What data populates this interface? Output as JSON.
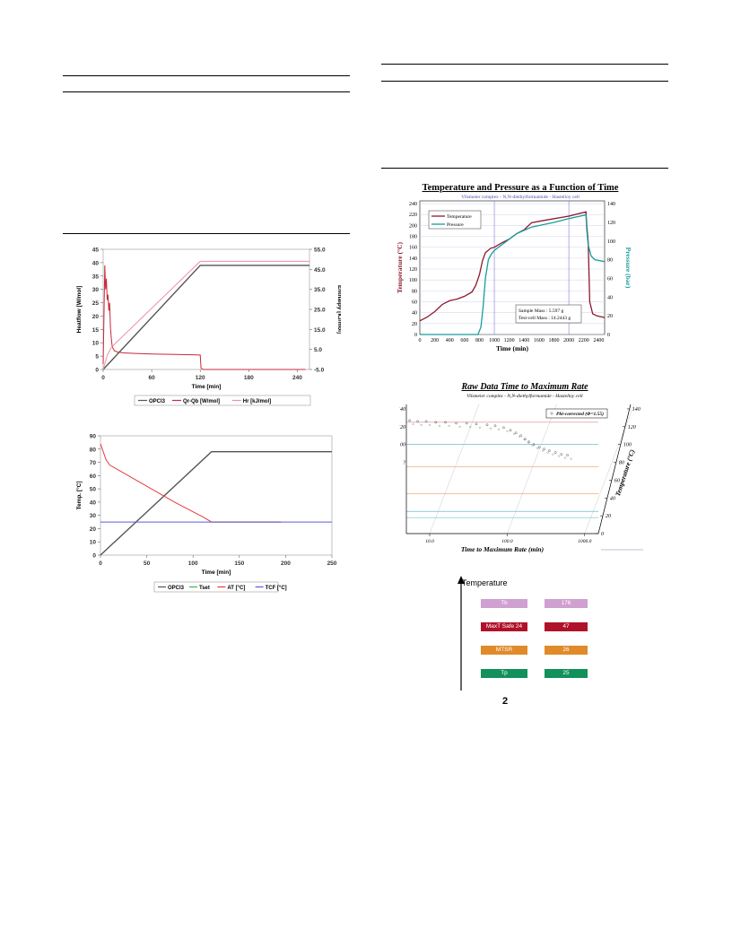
{
  "page_number": "2",
  "chart_data": [
    {
      "type": "line",
      "id": "heatflow_chart",
      "xlabel": "Time [min]",
      "ylabel": "Heatflow [W/mol]",
      "y2label": "Enthalpy [kJ/mol]",
      "x_ticks": [
        "0",
        "60",
        "120",
        "180",
        "240"
      ],
      "y_ticks": [
        "0",
        "5",
        "10",
        "15",
        "20",
        "25",
        "30",
        "35",
        "40",
        "45"
      ],
      "y2_ticks": [
        "55.0",
        "45.0",
        "35.0",
        "25.0",
        "15.0",
        "5.0",
        "-5.0"
      ],
      "xlim": [
        0,
        255
      ],
      "ylim": [
        0,
        45
      ],
      "y2lim": [
        -5,
        55
      ],
      "legend_position": "bottom",
      "series": [
        {
          "name": "OPCl3",
          "color": "#555555",
          "points": [
            [
              0,
              0
            ],
            [
              120,
              39
            ],
            [
              255,
              39
            ]
          ]
        },
        {
          "name": "Qr-Qb [W/mol]",
          "color": "#c8283c",
          "points": [
            [
              0,
              2
            ],
            [
              1,
              20
            ],
            [
              2,
              39
            ],
            [
              3,
              30
            ],
            [
              4,
              34
            ],
            [
              5,
              26
            ],
            [
              6,
              28
            ],
            [
              7,
              22
            ],
            [
              8,
              25
            ],
            [
              9,
              16
            ],
            [
              10,
              12
            ],
            [
              11,
              9
            ],
            [
              12,
              8
            ],
            [
              14,
              7
            ],
            [
              18,
              6.5
            ],
            [
              25,
              6.2
            ],
            [
              40,
              6
            ],
            [
              60,
              5.8
            ],
            [
              90,
              5.6
            ],
            [
              110,
              5.5
            ],
            [
              120,
              5.4
            ],
            [
              121,
              0.5
            ],
            [
              124,
              0
            ],
            [
              250,
              0
            ]
          ]
        },
        {
          "name": "Hr [kJ/mol]",
          "color": "#f08ca8",
          "points": [
            [
              0,
              -5
            ],
            [
              5,
              2
            ],
            [
              10,
              6
            ],
            [
              120,
              49
            ],
            [
              255,
              49
            ]
          ]
        }
      ]
    },
    {
      "type": "line",
      "id": "temp_chart",
      "xlabel": "Time [min]",
      "ylabel": "Temp. [°C]",
      "x_ticks": [
        "0",
        "50",
        "100",
        "150",
        "200",
        "250"
      ],
      "y_ticks": [
        "0",
        "10",
        "20",
        "30",
        "40",
        "50",
        "60",
        "70",
        "80",
        "90"
      ],
      "xlim": [
        0,
        250
      ],
      "ylim": [
        0,
        90
      ],
      "legend_position": "bottom",
      "series": [
        {
          "name": "OPCl3",
          "color": "#555555",
          "points": [
            [
              0,
              0
            ],
            [
              120,
              78
            ],
            [
              250,
              78
            ]
          ]
        },
        {
          "name": "Tset",
          "color": "#3cb44b",
          "points": [
            [
              120,
              25
            ],
            [
              195,
              25
            ]
          ]
        },
        {
          "name": "AT [°C]",
          "color": "#e63c3c",
          "points": [
            [
              0,
              84
            ],
            [
              3,
              78
            ],
            [
              6,
              72
            ],
            [
              10,
              68
            ],
            [
              20,
              64
            ],
            [
              50,
              52
            ],
            [
              80,
              40
            ],
            [
              110,
              29
            ],
            [
              120,
              25
            ],
            [
              195,
              25
            ]
          ]
        },
        {
          "name": "TCF [°C]",
          "color": "#5a5adc",
          "points": [
            [
              0,
              25
            ],
            [
              250,
              25
            ]
          ]
        }
      ]
    },
    {
      "type": "line",
      "id": "tp_chart",
      "title": "Temperature and Pressure as a Function of Time",
      "subtitle": "Vilsmeier complex - N,N-diethylformamide - Hastelloy cell",
      "xlabel": "Time (min)",
      "ylabel": "Temperature (°C)",
      "y2label": "Pressure (bar)",
      "x_ticks": [
        "0",
        "200",
        "400",
        "600",
        "800",
        "1000",
        "1200",
        "1400",
        "1600",
        "1800",
        "2000",
        "2200",
        "2400"
      ],
      "y_ticks": [
        "0",
        "20",
        "40",
        "60",
        "80",
        "100",
        "120",
        "140",
        "160",
        "180",
        "200",
        "220",
        "240"
      ],
      "y2_ticks": [
        "0",
        "20",
        "40",
        "60",
        "80",
        "100",
        "120",
        "140"
      ],
      "xlim": [
        0,
        2480
      ],
      "ylim": [
        0,
        245
      ],
      "y2lim": [
        0,
        143
      ],
      "legend_position": "top-left",
      "annotation": [
        "Sample Mass : 5.597 g",
        "Test-cell Mass : 14.2443 g"
      ],
      "series": [
        {
          "name": "Temperature",
          "color": "#8b1a2b",
          "points": [
            [
              0,
              25
            ],
            [
              100,
              32
            ],
            [
              200,
              42
            ],
            [
              300,
              55
            ],
            [
              400,
              62
            ],
            [
              500,
              65
            ],
            [
              600,
              70
            ],
            [
              700,
              78
            ],
            [
              750,
              90
            ],
            [
              800,
              110
            ],
            [
              840,
              135
            ],
            [
              880,
              150
            ],
            [
              950,
              158
            ],
            [
              1000,
              160
            ],
            [
              1100,
              168
            ],
            [
              1200,
              175
            ],
            [
              1300,
              185
            ],
            [
              1400,
              192
            ],
            [
              1500,
              205
            ],
            [
              1700,
              210
            ],
            [
              2000,
              217
            ],
            [
              2230,
              225
            ],
            [
              2240,
              200
            ],
            [
              2260,
              170
            ],
            [
              2280,
              60
            ],
            [
              2320,
              38
            ],
            [
              2380,
              34
            ],
            [
              2480,
              31
            ]
          ]
        },
        {
          "name": "Pressure",
          "color": "#1a9c9c",
          "points": [
            [
              0,
              0
            ],
            [
              780,
              0
            ],
            [
              820,
              8
            ],
            [
              850,
              30
            ],
            [
              880,
              60
            ],
            [
              920,
              80
            ],
            [
              960,
              86
            ],
            [
              1000,
              90
            ],
            [
              1100,
              96
            ],
            [
              1200,
              102
            ],
            [
              1300,
              108
            ],
            [
              1500,
              115
            ],
            [
              1800,
              120
            ],
            [
              2000,
              124
            ],
            [
              2230,
              128
            ],
            [
              2240,
              112
            ],
            [
              2260,
              96
            ],
            [
              2300,
              84
            ],
            [
              2350,
              80
            ],
            [
              2480,
              78
            ]
          ]
        }
      ]
    },
    {
      "type": "scatter",
      "id": "tmr_chart",
      "title": "Raw Data Time to Maximum Rate",
      "subtitle": "Vilsmeier complex - N,N-diethylformamide - Hastelloy cell",
      "xlabel": "Time to Maximum Rate (min)",
      "ylabel": "Temperature (°C)",
      "x_ticks": [
        "10.0",
        "100.0",
        "1000.0"
      ],
      "y_ticks_left": [
        "140",
        "120",
        "00",
        "?"
      ],
      "y_ticks_right": [
        "140",
        "120",
        "100",
        "80",
        "60",
        "40",
        "20",
        "0"
      ],
      "legend": "Phi-corrected (Φ=1.55)",
      "legend_position": "top-right",
      "series": [
        {
          "name": "Phi-corrected (Φ=1.55)",
          "color": "#555555",
          "points": [
            [
              5.5,
              127
            ],
            [
              7,
              126
            ],
            [
              9,
              126
            ],
            [
              12,
              125
            ],
            [
              16,
              125
            ],
            [
              22,
              124
            ],
            [
              30,
              124
            ],
            [
              40,
              123
            ],
            [
              55,
              122
            ],
            [
              70,
              121
            ],
            [
              90,
              119
            ],
            [
              110,
              116
            ],
            [
              130,
              113
            ],
            [
              150,
              110
            ],
            [
              170,
              106
            ],
            [
              190,
              103
            ],
            [
              220,
              100
            ],
            [
              260,
              97
            ],
            [
              300,
              95
            ],
            [
              350,
              93
            ],
            [
              420,
              91
            ],
            [
              500,
              89
            ],
            [
              600,
              88
            ]
          ]
        }
      ]
    }
  ],
  "tmr_scale": {
    "heading": "Temperature",
    "rows": [
      {
        "label": "Tb",
        "value": "176",
        "color": "#cfa0d0"
      },
      {
        "label": "MaxT Safe 24",
        "value": "47",
        "color": "#b0122a"
      },
      {
        "label": "MTSR",
        "value": "26",
        "color": "#e08a2a"
      },
      {
        "label": "Tp",
        "value": "25",
        "color": "#12915a"
      }
    ]
  }
}
